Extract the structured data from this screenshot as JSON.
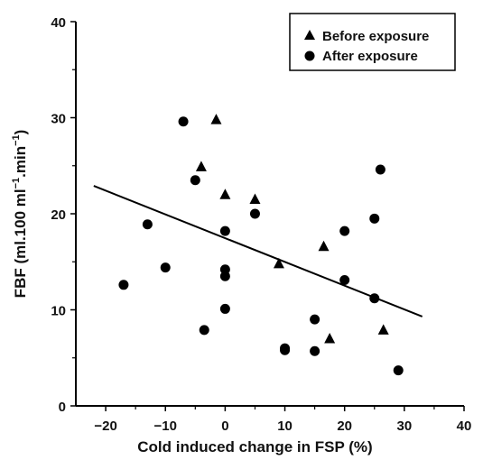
{
  "chart_data": {
    "type": "scatter",
    "title": "",
    "xlabel": "Cold induced change in FSP (%)",
    "ylabel_main": "FBF (ml.100 ml",
    "ylabel_sup1": "−1",
    "ylabel_mid": ".min",
    "ylabel_sup2": "−1",
    "ylabel_end": ")",
    "xlim": [
      -25,
      40
    ],
    "ylim": [
      0,
      40
    ],
    "xticks": [
      -20,
      -10,
      0,
      10,
      20,
      30,
      40
    ],
    "xtick_labels": [
      "−20",
      "−10",
      "0",
      "10",
      "20",
      "30",
      "40"
    ],
    "yticks": [
      0,
      10,
      20,
      30,
      40
    ],
    "ytick_labels": [
      "0",
      "10",
      "20",
      "30",
      "40"
    ],
    "grid": false,
    "legend_position": "top-right",
    "series": [
      {
        "name": "Before exposure",
        "marker": "triangle",
        "points": [
          {
            "x": -1.5,
            "y": 29.8
          },
          {
            "x": -4,
            "y": 24.9
          },
          {
            "x": 0,
            "y": 22.0
          },
          {
            "x": 5,
            "y": 21.5
          },
          {
            "x": 16.5,
            "y": 16.6
          },
          {
            "x": 9,
            "y": 14.8
          },
          {
            "x": 17.5,
            "y": 7.0
          },
          {
            "x": 26.5,
            "y": 7.9
          }
        ]
      },
      {
        "name": "After exposure",
        "marker": "circle",
        "points": [
          {
            "x": -7,
            "y": 29.6
          },
          {
            "x": -5,
            "y": 23.5
          },
          {
            "x": -13,
            "y": 18.9
          },
          {
            "x": 0,
            "y": 18.2
          },
          {
            "x": 5,
            "y": 20.0
          },
          {
            "x": -10,
            "y": 14.4
          },
          {
            "x": 0,
            "y": 14.2
          },
          {
            "x": 0,
            "y": 13.5
          },
          {
            "x": -17,
            "y": 12.6
          },
          {
            "x": 0,
            "y": 10.1
          },
          {
            "x": -3.5,
            "y": 7.9
          },
          {
            "x": 10,
            "y": 6.0
          },
          {
            "x": 10,
            "y": 5.8
          },
          {
            "x": 15,
            "y": 9.0
          },
          {
            "x": 15,
            "y": 5.7
          },
          {
            "x": 20,
            "y": 18.2
          },
          {
            "x": 20,
            "y": 13.1
          },
          {
            "x": 25,
            "y": 19.5
          },
          {
            "x": 25,
            "y": 11.2
          },
          {
            "x": 26,
            "y": 24.6
          },
          {
            "x": 29,
            "y": 3.7
          }
        ]
      }
    ],
    "regression_line": {
      "x": [
        -22,
        33
      ],
      "y": [
        22.9,
        9.3
      ]
    }
  }
}
